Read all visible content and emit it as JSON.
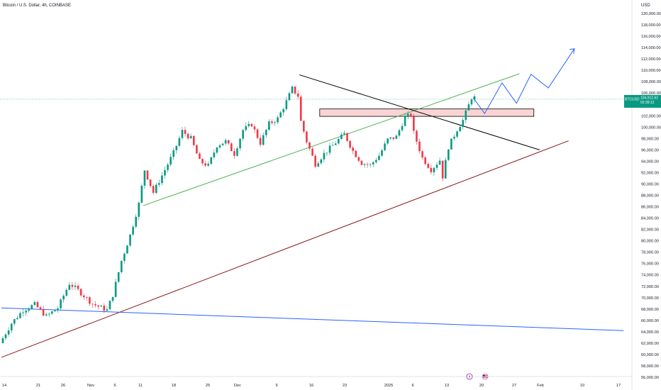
{
  "header": {
    "title": "Bitcoin / U.S. Dollar, 4h, COINBASE",
    "currency": "USD"
  },
  "price_badge": {
    "symbol": "BTCUSD",
    "price": "104,912.62",
    "countdown": "02:39:12",
    "color": "#089981"
  },
  "colors": {
    "up": "#089981",
    "down": "#f23645",
    "green_line": "#4caf50",
    "black_line": "#000000",
    "maroon_line": "#8b1a1a",
    "blue_line": "#2962ff",
    "zone_fill": "#f9c9c9",
    "projection": "#2962ff"
  },
  "icons": [
    "lightning-icon",
    "us-flag-icon"
  ],
  "chart_data": {
    "type": "candlestick",
    "y_axis": {
      "min": 56000,
      "max": 121000,
      "tick_labels": [
        "120,000.00",
        "118,000.00",
        "116,000.00",
        "114,000.00",
        "112,000.00",
        "110,000.00",
        "108,000.00",
        "106,000.00",
        "104,000.00",
        "102,000.00",
        "100,000.00",
        "98,000.00",
        "96,000.00",
        "94,000.00",
        "92,000.00",
        "90,000.00",
        "88,000.00",
        "86,000.00",
        "84,000.00",
        "82,000.00",
        "80,000.00",
        "78,000.00",
        "76,000.00",
        "74,000.00",
        "72,000.00",
        "70,000.00",
        "68,000.00",
        "66,000.00",
        "64,000.00",
        "62,000.00",
        "60,000.00",
        "58,000.00",
        "56,000.00"
      ]
    },
    "x_axis": {
      "tick_labels": [
        "14",
        "21",
        "26",
        "Nov",
        "6",
        "11",
        "18",
        "25",
        "Dec",
        "9",
        "16",
        "23",
        "2025",
        "6",
        "13",
        "20",
        "27",
        "Feb",
        "10",
        "17"
      ]
    },
    "price_path": [
      [
        0,
        62000
      ],
      [
        4,
        65500
      ],
      [
        8,
        67800
      ],
      [
        12,
        68800
      ],
      [
        16,
        66700
      ],
      [
        20,
        68200
      ],
      [
        24,
        72500
      ],
      [
        27,
        71300
      ],
      [
        32,
        68900
      ],
      [
        37,
        67800
      ],
      [
        39,
        70500
      ],
      [
        42,
        76500
      ],
      [
        45,
        81000
      ],
      [
        48,
        86500
      ],
      [
        50,
        92500
      ],
      [
        53,
        88500
      ],
      [
        56,
        91500
      ],
      [
        60,
        95500
      ],
      [
        63,
        99300
      ],
      [
        66,
        98000
      ],
      [
        69,
        94000
      ],
      [
        72,
        93200
      ],
      [
        75,
        96800
      ],
      [
        78,
        97500
      ],
      [
        81,
        95300
      ],
      [
        84,
        99500
      ],
      [
        87,
        100500
      ],
      [
        90,
        97200
      ],
      [
        93,
        100600
      ],
      [
        96,
        101500
      ],
      [
        99,
        104500
      ],
      [
        101,
        106800
      ],
      [
        103,
        105500
      ],
      [
        104,
        101000
      ],
      [
        106,
        97500
      ],
      [
        109,
        93500
      ],
      [
        112,
        95300
      ],
      [
        116,
        97300
      ],
      [
        119,
        98800
      ],
      [
        122,
        95800
      ],
      [
        125,
        93700
      ],
      [
        128,
        93300
      ],
      [
        131,
        95000
      ],
      [
        134,
        97800
      ],
      [
        137,
        98300
      ],
      [
        140,
        101800
      ],
      [
        142,
        102100
      ],
      [
        143,
        99000
      ],
      [
        146,
        94600
      ],
      [
        149,
        92500
      ],
      [
        152,
        94200
      ],
      [
        153,
        91300
      ],
      [
        155,
        96500
      ],
      [
        158,
        99600
      ],
      [
        160,
        101200
      ],
      [
        163,
        105200
      ]
    ],
    "candle_count": 164,
    "projection": [
      [
        163,
        105200
      ],
      [
        167,
        102400
      ],
      [
        173,
        107800
      ],
      [
        178,
        104200
      ],
      [
        183,
        109300
      ],
      [
        189,
        106900
      ],
      [
        198,
        113800
      ]
    ],
    "trendlines": [
      {
        "id": "green-channel-line",
        "points": [
          [
            49,
            86200
          ],
          [
            179,
            109400
          ]
        ]
      },
      {
        "id": "black-resistance-line",
        "points": [
          [
            103,
            109200
          ],
          [
            186,
            96000
          ]
        ]
      },
      {
        "id": "maroon-support-line",
        "points": [
          [
            0,
            59500
          ],
          [
            196,
            97600
          ]
        ]
      },
      {
        "id": "blue-support-line",
        "points": [
          [
            0,
            68200
          ],
          [
            215,
            64200
          ]
        ]
      }
    ],
    "zone": {
      "x": [
        110,
        184
      ],
      "y": [
        101900,
        103200
      ]
    }
  }
}
